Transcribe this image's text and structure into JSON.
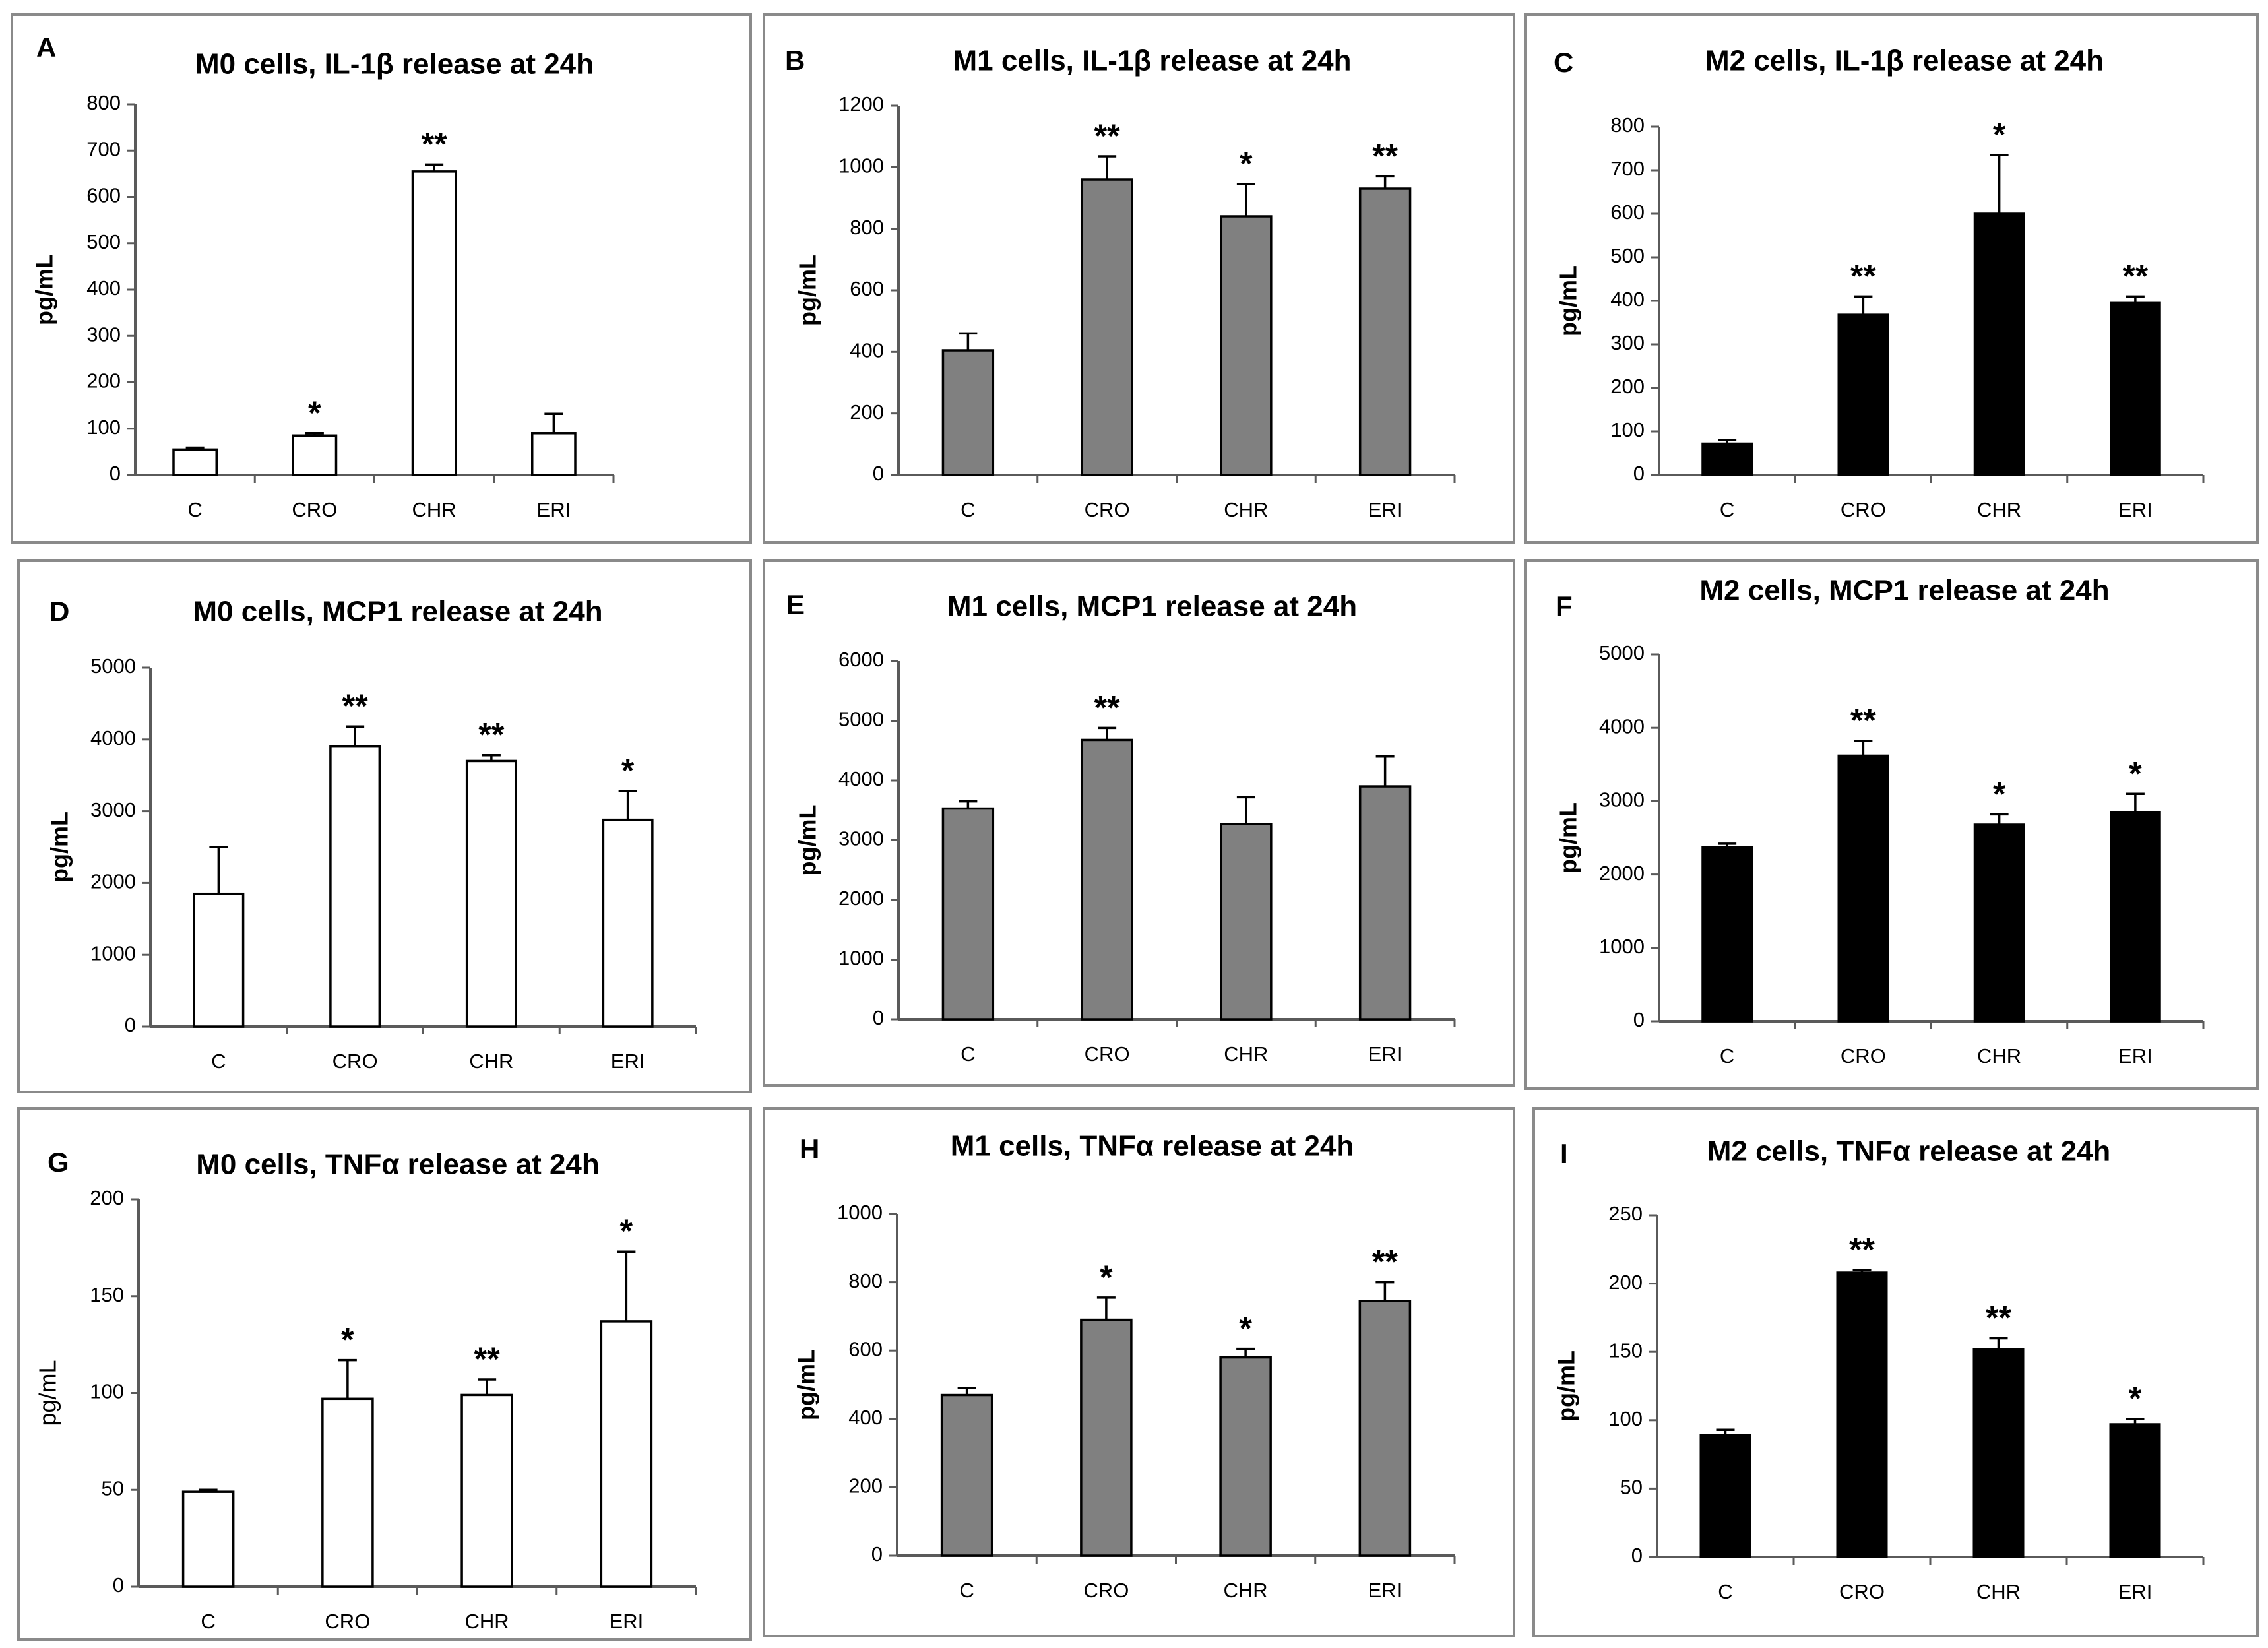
{
  "figure": {
    "categories": [
      "C",
      "CRO",
      "CHR",
      "ERI"
    ],
    "ylabel": "pg/mL",
    "colors": {
      "M0": "#ffffff",
      "M1": "#808080",
      "M2": "#000000"
    }
  },
  "chart_data": [
    {
      "type": "bar",
      "letter": "A",
      "title": "M0 cells, IL-1β release at 24h",
      "cell": "M0",
      "categories": [
        "C",
        "CRO",
        "CHR",
        "ERI"
      ],
      "values": [
        55,
        85,
        655,
        90
      ],
      "errors": [
        4,
        5,
        15,
        42
      ],
      "significance": [
        "",
        "*",
        "**",
        ""
      ],
      "ylabel": "pg/mL",
      "ylim": [
        0,
        800
      ],
      "yticks": [
        0,
        100,
        200,
        300,
        400,
        500,
        600,
        700,
        800
      ]
    },
    {
      "type": "bar",
      "letter": "B",
      "title": "M1 cells, IL-1β release at 24h",
      "cell": "M1",
      "categories": [
        "C",
        "CRO",
        "CHR",
        "ERI"
      ],
      "values": [
        405,
        960,
        840,
        930
      ],
      "errors": [
        55,
        75,
        105,
        40
      ],
      "significance": [
        "",
        "**",
        "*",
        "**"
      ],
      "ylabel": "pg/mL",
      "ylim": [
        0,
        1200
      ],
      "yticks": [
        0,
        200,
        400,
        600,
        800,
        1000,
        1200
      ]
    },
    {
      "type": "bar",
      "letter": "C",
      "title": "M2 cells, IL-1β release at 24h",
      "cell": "M2",
      "categories": [
        "C",
        "CRO",
        "CHR",
        "ERI"
      ],
      "values": [
        72,
        368,
        600,
        395
      ],
      "errors": [
        8,
        42,
        135,
        15
      ],
      "significance": [
        "",
        "**",
        "*",
        "**"
      ],
      "ylabel": "pg/mL",
      "ylim": [
        0,
        800
      ],
      "yticks": [
        0,
        100,
        200,
        300,
        400,
        500,
        600,
        700,
        800
      ]
    },
    {
      "type": "bar",
      "letter": "D",
      "title": "M0 cells, MCP1 release at 24h",
      "cell": "M0",
      "categories": [
        "C",
        "CRO",
        "CHR",
        "ERI"
      ],
      "values": [
        1850,
        3900,
        3700,
        2880
      ],
      "errors": [
        650,
        280,
        80,
        400
      ],
      "significance": [
        "",
        "**",
        "**",
        "*"
      ],
      "ylabel": "pg/mL",
      "ylim": [
        0,
        5000
      ],
      "yticks": [
        0,
        1000,
        2000,
        3000,
        4000,
        5000
      ]
    },
    {
      "type": "bar",
      "letter": "E",
      "title": "M1 cells, MCP1 release at 24h",
      "cell": "M1",
      "categories": [
        "C",
        "CRO",
        "CHR",
        "ERI"
      ],
      "values": [
        3530,
        4680,
        3270,
        3900
      ],
      "errors": [
        120,
        200,
        450,
        500
      ],
      "significance": [
        "",
        "**",
        "",
        ""
      ],
      "ylabel": "pg/mL",
      "ylim": [
        0,
        6000
      ],
      "yticks": [
        0,
        1000,
        2000,
        3000,
        4000,
        5000,
        6000
      ]
    },
    {
      "type": "bar",
      "letter": "F",
      "title": "M2 cells, MCP1 release at 24h",
      "cell": "M2",
      "categories": [
        "C",
        "CRO",
        "CHR",
        "ERI"
      ],
      "values": [
        2370,
        3620,
        2680,
        2850
      ],
      "errors": [
        50,
        200,
        140,
        250
      ],
      "significance": [
        "",
        "**",
        "*",
        "*"
      ],
      "ylabel": "pg/mL",
      "ylim": [
        0,
        5000
      ],
      "yticks": [
        0,
        1000,
        2000,
        3000,
        4000,
        5000
      ]
    },
    {
      "type": "bar",
      "letter": "G",
      "title": "M0 cells, TNFα release at 24h",
      "cell": "M0",
      "categories": [
        "C",
        "CRO",
        "CHR",
        "ERI"
      ],
      "values": [
        49,
        97,
        99,
        137
      ],
      "errors": [
        1,
        20,
        8,
        36
      ],
      "significance": [
        "",
        "*",
        "**",
        "*"
      ],
      "ylabel": "pg/mL",
      "ylim": [
        0,
        200
      ],
      "yticks": [
        0,
        50,
        100,
        150,
        200
      ],
      "ylabel_bold": false
    },
    {
      "type": "bar",
      "letter": "H",
      "title": "M1 cells, TNFα release at 24h",
      "cell": "M1",
      "categories": [
        "C",
        "CRO",
        "CHR",
        "ERI"
      ],
      "values": [
        470,
        690,
        580,
        745
      ],
      "errors": [
        20,
        65,
        25,
        55
      ],
      "significance": [
        "",
        "*",
        "*",
        "**"
      ],
      "ylabel": "pg/mL",
      "ylim": [
        0,
        1000
      ],
      "yticks": [
        0,
        200,
        400,
        600,
        800,
        1000
      ]
    },
    {
      "type": "bar",
      "letter": "I",
      "title": "M2 cells, TNFα release at 24h",
      "cell": "M2",
      "categories": [
        "C",
        "CRO",
        "CHR",
        "ERI"
      ],
      "values": [
        89,
        208,
        152,
        97
      ],
      "errors": [
        4,
        2,
        8,
        4
      ],
      "significance": [
        "",
        "**",
        "**",
        "*"
      ],
      "ylabel": "pg/mL",
      "ylim": [
        0,
        250
      ],
      "yticks": [
        0,
        50,
        100,
        150,
        200,
        250
      ]
    }
  ]
}
